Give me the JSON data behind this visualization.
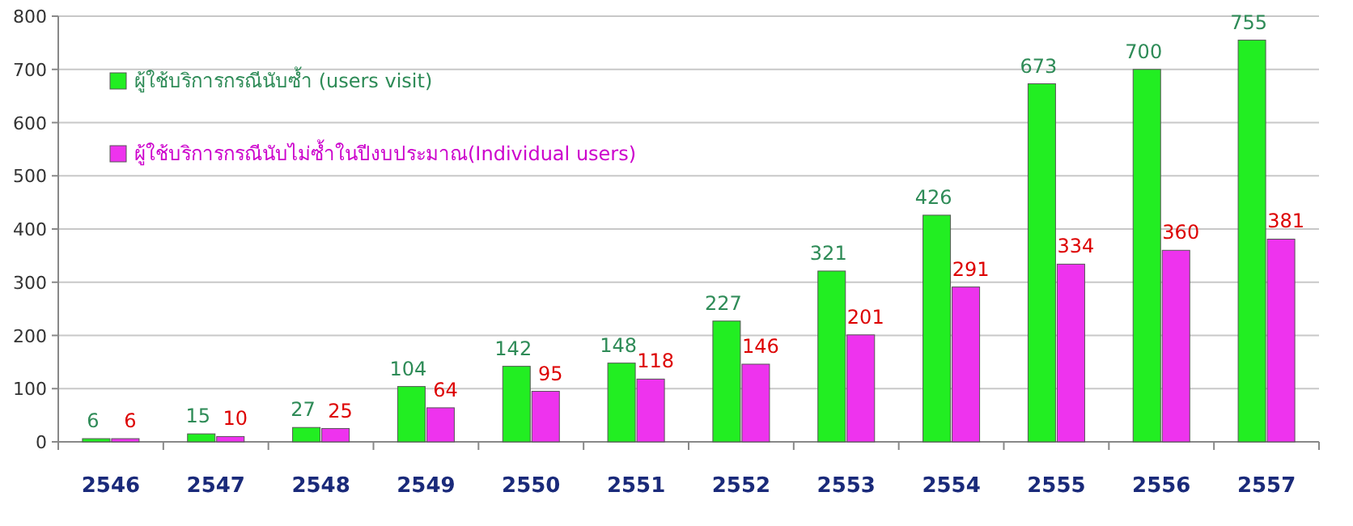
{
  "chart_data": {
    "type": "bar",
    "categories": [
      "2546",
      "2547",
      "2548",
      "2549",
      "2550",
      "2551",
      "2552",
      "2553",
      "2554",
      "2555",
      "2556",
      "2557"
    ],
    "series": [
      {
        "name": "ผู้ใช้บริการกรณีนับซ้ำ (users visit)",
        "color": "#22ee22",
        "values": [
          6,
          15,
          27,
          104,
          142,
          148,
          227,
          321,
          426,
          673,
          700,
          755
        ]
      },
      {
        "name": "ผู้ใช้บริการกรณีนับไม่ซ้ำในปีงบประมาณ(Individual users)",
        "color": "#ee33ee",
        "values": [
          6,
          10,
          25,
          64,
          95,
          118,
          146,
          201,
          291,
          334,
          360,
          381
        ]
      }
    ],
    "ylim": [
      0,
      800
    ],
    "yticks": [
      0,
      100,
      200,
      300,
      400,
      500,
      600,
      700,
      800
    ],
    "grid": "y",
    "legend": "top left",
    "data_labels": true
  }
}
